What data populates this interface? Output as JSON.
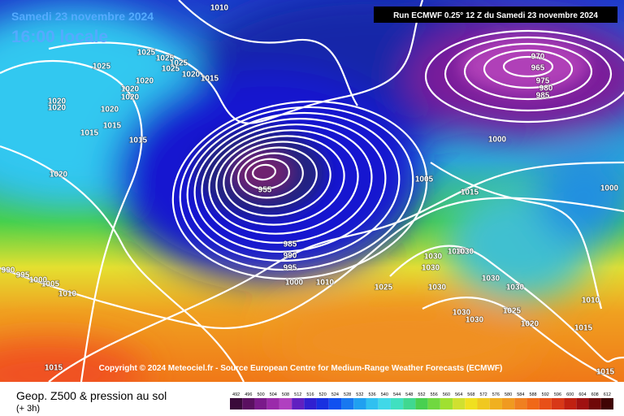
{
  "header": {
    "date": "Samedi 23 novembre 2024",
    "time": "16:00 locale",
    "run": "Run ECMWF 0.25° 12 Z du Samedi 23 novembre 2024"
  },
  "copyright": "Copyright © 2024 Meteociel.fr - Source European Centre for Medium-Range Weather Forecasts (ECMWF)",
  "footer": {
    "title": "Geop. Z500 & pression au sol",
    "step": "(+ 3h)"
  },
  "legend": {
    "values": [
      492,
      496,
      500,
      504,
      508,
      512,
      516,
      520,
      524,
      528,
      532,
      536,
      540,
      544,
      548,
      552,
      556,
      560,
      564,
      568,
      572,
      576,
      580,
      584,
      588,
      592,
      596,
      600,
      604,
      608,
      612
    ]
  },
  "isobar_labels": [
    1010,
    1025,
    1025,
    1025,
    1025,
    1025,
    1020,
    1020,
    1020,
    1020,
    1015,
    1020,
    1020,
    1020,
    1015,
    1015,
    1015,
    1020,
    970,
    965,
    975,
    980,
    985,
    1000,
    1005,
    1015,
    1000,
    955,
    985,
    990,
    995,
    1000,
    1010,
    1025,
    1030,
    1030,
    1030,
    1030,
    1030,
    1030,
    1030,
    1030,
    1030,
    1025,
    1020,
    1015,
    1010,
    1015,
    1015,
    1010,
    1005,
    1000,
    995,
    990
  ]
}
